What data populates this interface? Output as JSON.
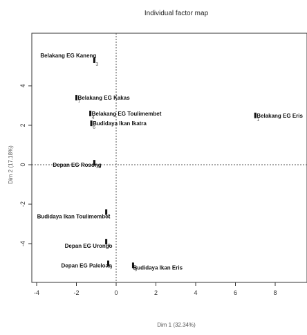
{
  "chart_data": {
    "type": "scatter",
    "title": "Individual factor map",
    "xlabel": "Dim 1 (32.34%)",
    "ylabel": "Dim 2 (17.18%)",
    "xlim": [
      -4.2,
      9
    ],
    "ylim": [
      -5.8,
      6.3
    ],
    "xticks": [
      -4,
      -2,
      0,
      2,
      4,
      6,
      8
    ],
    "yticks": [
      4,
      2,
      0,
      -2,
      -4
    ],
    "grid": false,
    "reference_lines": {
      "x": 0,
      "y": 0
    },
    "points": [
      {
        "label": "Belakang EG Kaneng",
        "num": "3",
        "x": -1.1,
        "y": 5.3
      },
      {
        "label": "Belakang EG Kakas",
        "num": "7",
        "x": -2.0,
        "y": 3.4
      },
      {
        "label": "Belakang EG Toulimembet",
        "num": "4",
        "x": -1.3,
        "y": 2.6
      },
      {
        "label": "Budidaya Ikan Ikatra",
        "num": "6",
        "x": -1.25,
        "y": 2.1
      },
      {
        "label": "Belakang EG Eris",
        "num": "1",
        "x": 7.0,
        "y": 2.5
      },
      {
        "label": "Depan EG Rosong",
        "num": "10",
        "x": -1.1,
        "y": 0.1
      },
      {
        "label": "Budidaya Ikan Toulimembet",
        "num": "2",
        "x": -0.5,
        "y": -2.4
      },
      {
        "label": "Depan EG Urongo",
        "num": "8",
        "x": -0.5,
        "y": -3.9
      },
      {
        "label": "Depan EG Paleloan",
        "num": "9",
        "x": -0.4,
        "y": -5.0
      },
      {
        "label": "Budidaya Ikan Eris",
        "num": "5",
        "x": 0.85,
        "y": -5.1
      }
    ]
  }
}
